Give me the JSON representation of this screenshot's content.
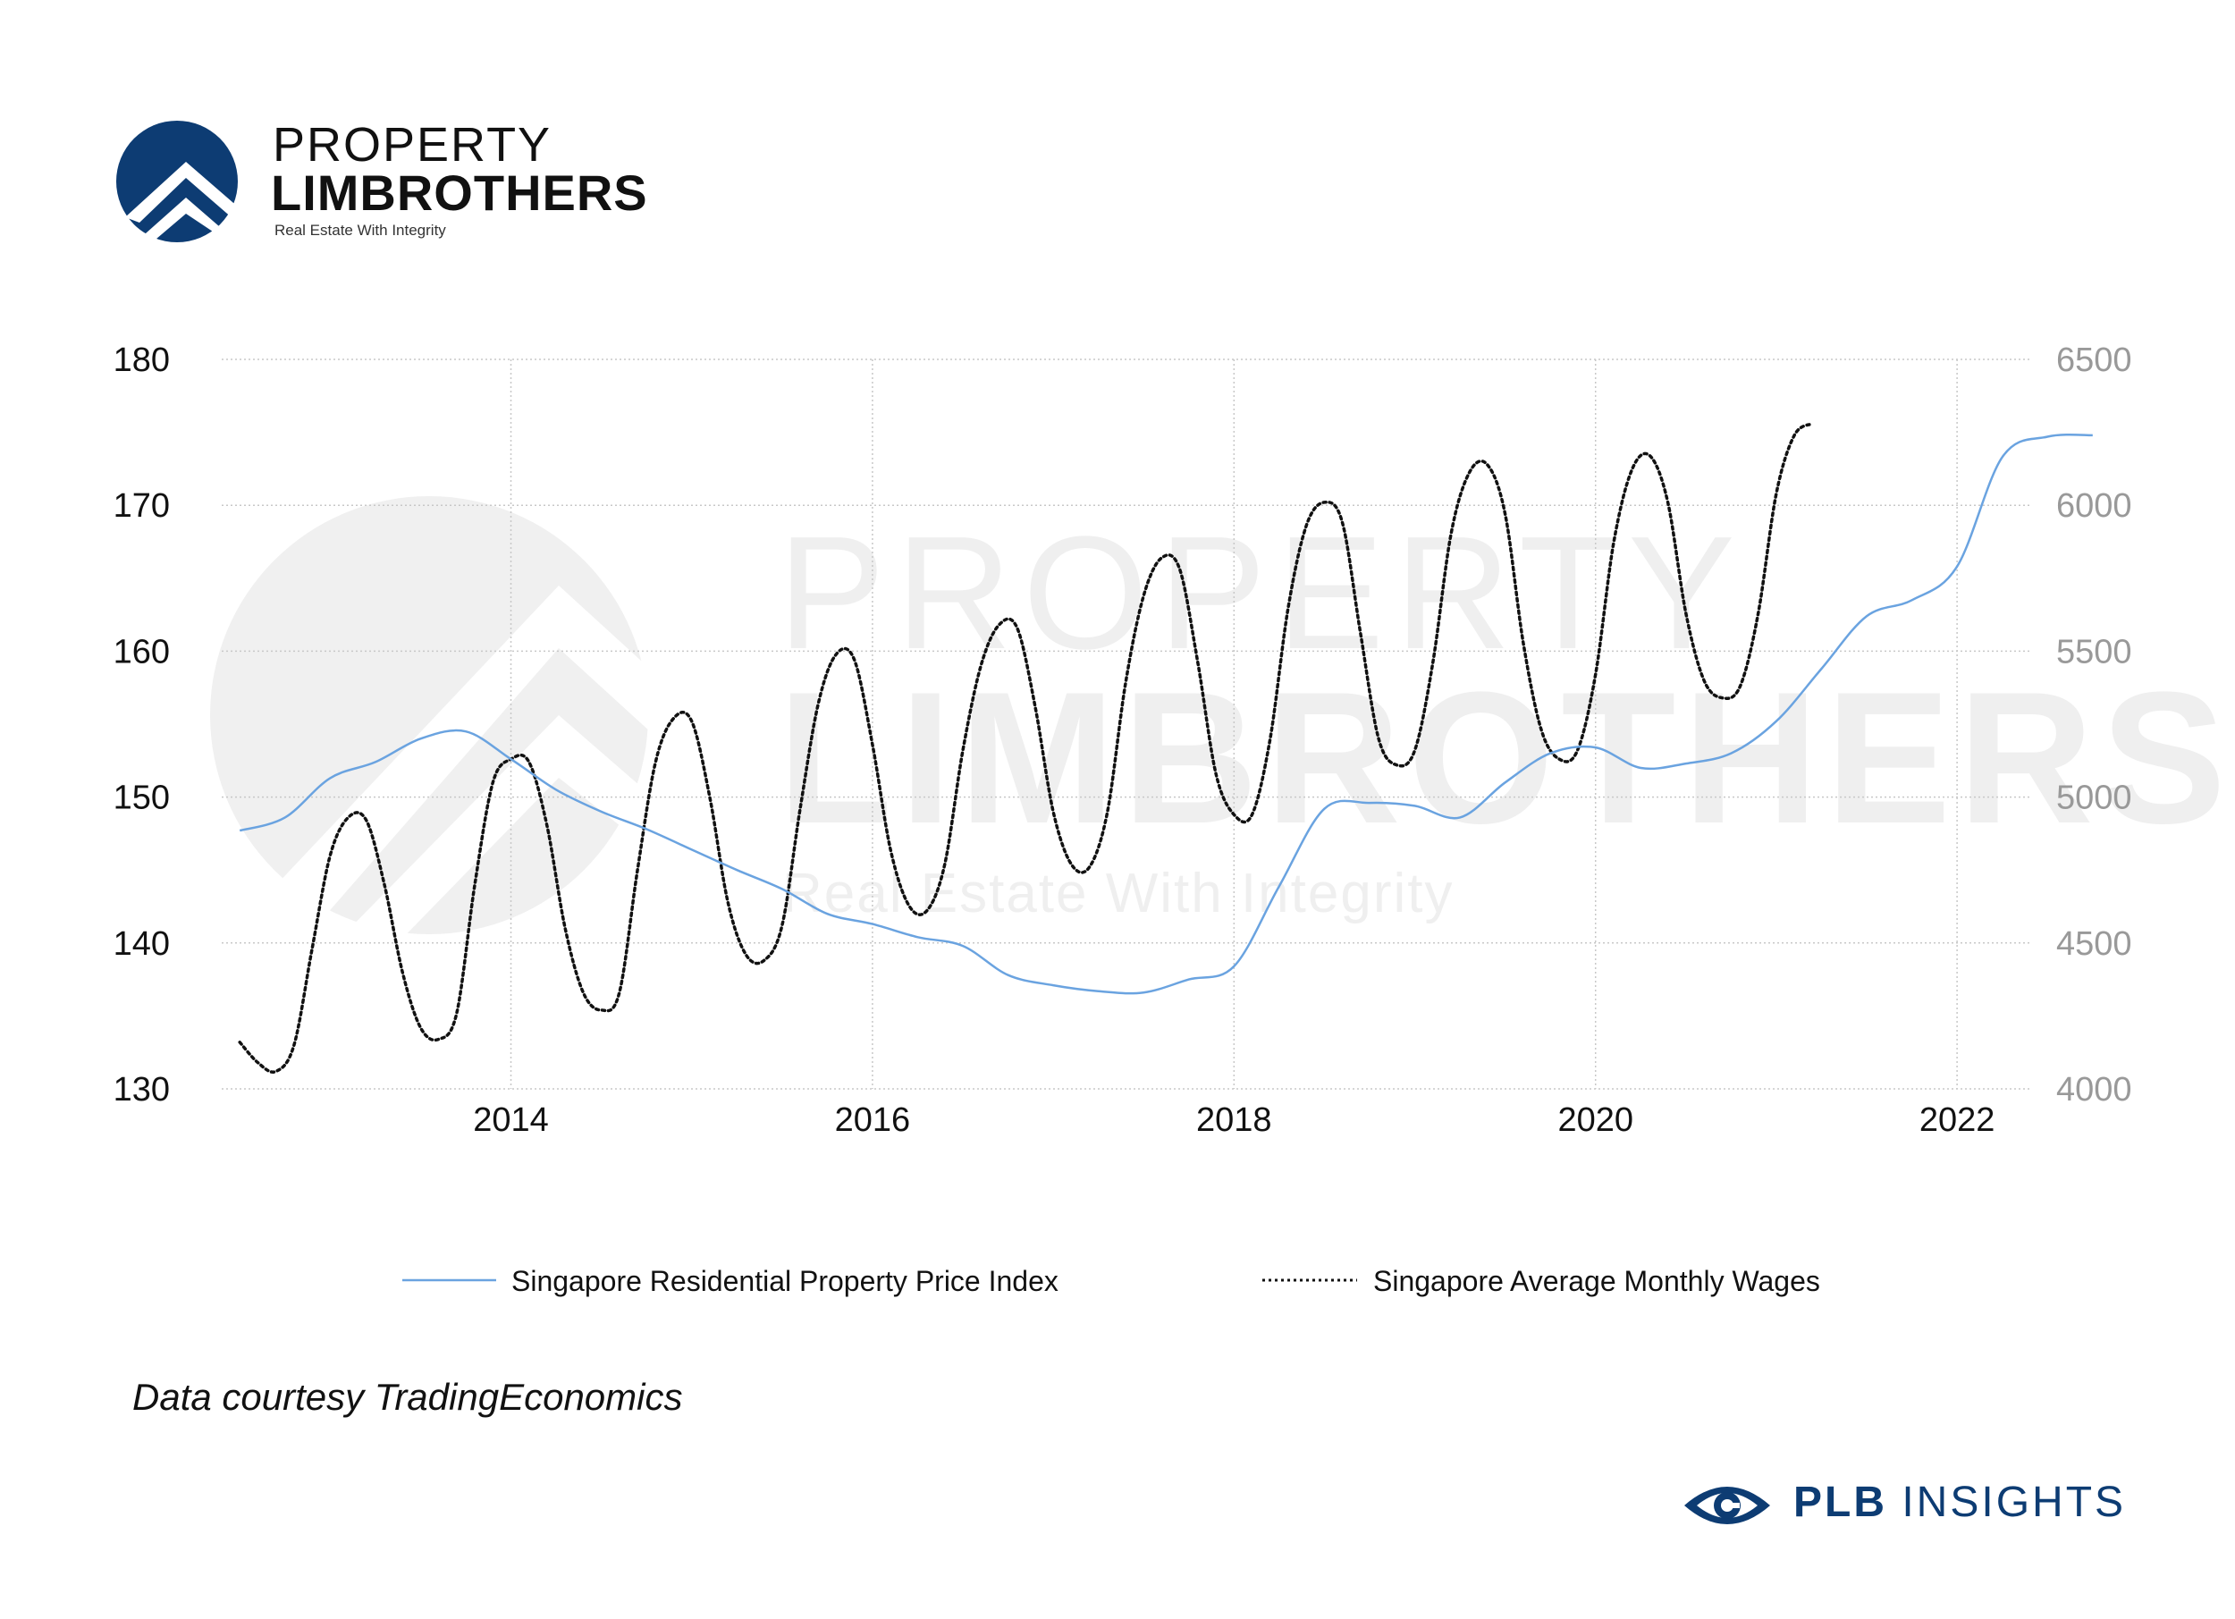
{
  "brand": {
    "line1": "PROPERTY",
    "line2": "LIMBROTHERS",
    "tagline": "Real Estate With Integrity",
    "color": "#0d3c73",
    "logo_icon": "house-chevron-circle-icon"
  },
  "watermark": {
    "line1": "PROPERTY",
    "line2": "LIMBROTHERS",
    "line3": "Real Estate With Integrity"
  },
  "legend": {
    "series_1": "Singapore Residential Property Price Index",
    "series_2": "Singapore Average Monthly Wages"
  },
  "source_note": "Data courtesy TradingEconomics",
  "footer": {
    "bold": "PLB",
    "rest": " INSIGHTS",
    "icon": "eye-icon"
  },
  "chart_data": {
    "type": "line",
    "xlim": [
      2012.4,
      2022.4
    ],
    "x_ticks": [
      "2014",
      "2016",
      "2018",
      "2020",
      "2022"
    ],
    "y_left": {
      "ylim": [
        130,
        180
      ],
      "ticks": [
        "130",
        "140",
        "150",
        "160",
        "170",
        "180"
      ]
    },
    "y_right": {
      "ylim": [
        4000,
        6500
      ],
      "ticks": [
        "4000",
        "4500",
        "5000",
        "5500",
        "6000",
        "6500"
      ]
    },
    "grid": true,
    "legend_position": "bottom",
    "series": [
      {
        "name": "Singapore Residential Property Price Index",
        "axis": "left",
        "style": "solid",
        "color": "#6aa3e0",
        "points": [
          [
            2012.5,
            147.7
          ],
          [
            2012.75,
            148.6
          ],
          [
            2013.0,
            151.3
          ],
          [
            2013.25,
            152.4
          ],
          [
            2013.5,
            154.0
          ],
          [
            2013.75,
            154.5
          ],
          [
            2014.0,
            152.6
          ],
          [
            2014.25,
            150.5
          ],
          [
            2014.5,
            149.0
          ],
          [
            2014.75,
            147.8
          ],
          [
            2015.0,
            146.4
          ],
          [
            2015.25,
            145.0
          ],
          [
            2015.5,
            143.7
          ],
          [
            2015.75,
            142.0
          ],
          [
            2016.0,
            141.3
          ],
          [
            2016.25,
            140.4
          ],
          [
            2016.5,
            139.8
          ],
          [
            2016.75,
            137.8
          ],
          [
            2017.0,
            137.1
          ],
          [
            2017.25,
            136.7
          ],
          [
            2017.5,
            136.6
          ],
          [
            2017.75,
            137.5
          ],
          [
            2018.0,
            138.4
          ],
          [
            2018.25,
            143.9
          ],
          [
            2018.5,
            149.2
          ],
          [
            2018.75,
            149.6
          ],
          [
            2019.0,
            149.4
          ],
          [
            2019.25,
            148.6
          ],
          [
            2019.5,
            151.0
          ],
          [
            2019.75,
            153.0
          ],
          [
            2020.0,
            153.4
          ],
          [
            2020.25,
            152.0
          ],
          [
            2020.5,
            152.3
          ],
          [
            2020.75,
            153.0
          ],
          [
            2021.0,
            155.2
          ],
          [
            2021.25,
            158.8
          ],
          [
            2021.5,
            162.4
          ],
          [
            2021.75,
            163.5
          ],
          [
            2022.0,
            165.8
          ],
          [
            2022.25,
            173.3
          ],
          [
            2022.5,
            174.7
          ],
          [
            2022.75,
            174.8
          ]
        ]
      },
      {
        "name": "Singapore Average Monthly Wages",
        "axis": "right",
        "style": "dotted",
        "color": "#111111",
        "points": [
          [
            2012.5,
            4160
          ],
          [
            2012.6,
            4090
          ],
          [
            2012.7,
            4060
          ],
          [
            2012.8,
            4150
          ],
          [
            2012.9,
            4480
          ],
          [
            2013.0,
            4800
          ],
          [
            2013.1,
            4930
          ],
          [
            2013.2,
            4920
          ],
          [
            2013.3,
            4700
          ],
          [
            2013.4,
            4400
          ],
          [
            2013.5,
            4210
          ],
          [
            2013.6,
            4170
          ],
          [
            2013.7,
            4260
          ],
          [
            2013.8,
            4700
          ],
          [
            2013.9,
            5050
          ],
          [
            2014.0,
            5130
          ],
          [
            2014.1,
            5120
          ],
          [
            2014.2,
            4900
          ],
          [
            2014.3,
            4550
          ],
          [
            2014.4,
            4330
          ],
          [
            2014.5,
            4270
          ],
          [
            2014.6,
            4330
          ],
          [
            2014.7,
            4750
          ],
          [
            2014.8,
            5120
          ],
          [
            2014.9,
            5270
          ],
          [
            2015.0,
            5260
          ],
          [
            2015.1,
            5000
          ],
          [
            2015.2,
            4640
          ],
          [
            2015.3,
            4460
          ],
          [
            2015.4,
            4440
          ],
          [
            2015.5,
            4560
          ],
          [
            2015.6,
            4960
          ],
          [
            2015.7,
            5320
          ],
          [
            2015.8,
            5490
          ],
          [
            2015.9,
            5470
          ],
          [
            2016.0,
            5180
          ],
          [
            2016.1,
            4820
          ],
          [
            2016.2,
            4630
          ],
          [
            2016.3,
            4610
          ],
          [
            2016.4,
            4770
          ],
          [
            2016.5,
            5160
          ],
          [
            2016.6,
            5450
          ],
          [
            2016.7,
            5590
          ],
          [
            2016.8,
            5580
          ],
          [
            2016.9,
            5310
          ],
          [
            2017.0,
            4950
          ],
          [
            2017.1,
            4770
          ],
          [
            2017.2,
            4760
          ],
          [
            2017.3,
            4950
          ],
          [
            2017.4,
            5390
          ],
          [
            2017.5,
            5690
          ],
          [
            2017.6,
            5820
          ],
          [
            2017.7,
            5780
          ],
          [
            2017.8,
            5460
          ],
          [
            2017.9,
            5080
          ],
          [
            2018.0,
            4940
          ],
          [
            2018.1,
            4940
          ],
          [
            2018.2,
            5200
          ],
          [
            2018.3,
            5650
          ],
          [
            2018.4,
            5930
          ],
          [
            2018.5,
            6010
          ],
          [
            2018.6,
            5940
          ],
          [
            2018.7,
            5560
          ],
          [
            2018.8,
            5200
          ],
          [
            2018.9,
            5110
          ],
          [
            2019.0,
            5160
          ],
          [
            2019.1,
            5460
          ],
          [
            2019.2,
            5900
          ],
          [
            2019.3,
            6110
          ],
          [
            2019.4,
            6140
          ],
          [
            2019.5,
            5970
          ],
          [
            2019.6,
            5530
          ],
          [
            2019.7,
            5230
          ],
          [
            2019.8,
            5130
          ],
          [
            2019.9,
            5160
          ],
          [
            2020.0,
            5420
          ],
          [
            2020.1,
            5870
          ],
          [
            2020.2,
            6120
          ],
          [
            2020.3,
            6170
          ],
          [
            2020.4,
            6010
          ],
          [
            2020.5,
            5630
          ],
          [
            2020.6,
            5400
          ],
          [
            2020.7,
            5340
          ],
          [
            2020.8,
            5380
          ],
          [
            2020.9,
            5630
          ],
          [
            2021.0,
            6040
          ],
          [
            2021.1,
            6240
          ],
          [
            2021.2,
            6280
          ]
        ]
      }
    ]
  }
}
